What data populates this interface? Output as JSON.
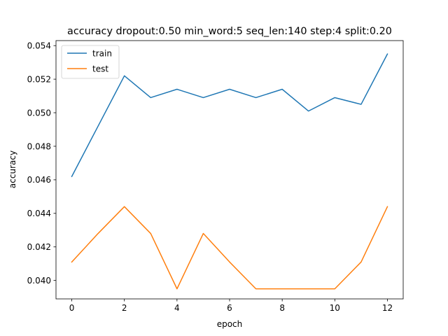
{
  "chart_data": {
    "type": "line",
    "title": "accuracy dropout:0.50 min_word:5 seq_len:140 step:4 split:0.20",
    "xlabel": "epoch",
    "ylabel": "accuracy",
    "xlim": [
      -0.6,
      12.6
    ],
    "ylim": [
      0.0389,
      0.0543
    ],
    "xticks": [
      0,
      2,
      4,
      6,
      8,
      10,
      12
    ],
    "xtick_labels": [
      "0",
      "2",
      "4",
      "6",
      "8",
      "10",
      "12"
    ],
    "yticks": [
      0.04,
      0.042,
      0.044,
      0.046,
      0.048,
      0.05,
      0.052,
      0.054
    ],
    "ytick_labels": [
      "0.040",
      "0.042",
      "0.044",
      "0.046",
      "0.048",
      "0.050",
      "0.052",
      "0.054"
    ],
    "grid": false,
    "legend_position": "top-left",
    "x": [
      0,
      1,
      2,
      3,
      4,
      5,
      6,
      7,
      8,
      9,
      10,
      11,
      12
    ],
    "series": [
      {
        "name": "train",
        "color": "#1f77b4",
        "values": [
          0.0462,
          0.0492,
          0.0522,
          0.0509,
          0.0514,
          0.0509,
          0.0514,
          0.0509,
          0.0514,
          0.0501,
          0.0509,
          0.0505,
          0.0535
        ]
      },
      {
        "name": "test",
        "color": "#ff7f0e",
        "values": [
          0.0411,
          0.0428,
          0.0444,
          0.0428,
          0.0395,
          0.0428,
          0.0411,
          0.0395,
          0.0395,
          0.0395,
          0.0395,
          0.0411,
          0.0444
        ]
      }
    ]
  }
}
